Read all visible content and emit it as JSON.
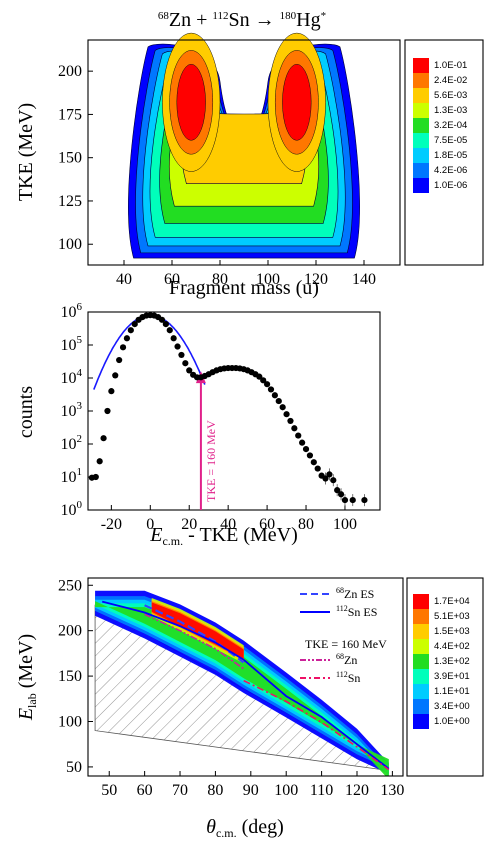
{
  "chart_data": [
    {
      "type": "heatmap",
      "title_parts": {
        "a1": "68",
        "b1": "Zn + ",
        "a2": "112",
        "b2": "Sn → ",
        "a3": "180",
        "b3": "Hg",
        "a4": "*"
      },
      "xlabel": "Fragment mass (u)",
      "ylabel": "TKE (MeV)",
      "xlim": [
        25,
        155
      ],
      "ylim": [
        88,
        218
      ],
      "xticks": [
        "40",
        "60",
        "80",
        "100",
        "120",
        "140"
      ],
      "yticks": [
        "100",
        "125",
        "150",
        "175",
        "200"
      ],
      "scale_labels": [
        "1.0E-01",
        "2.4E-02",
        "5.6E-03",
        "1.3E-03",
        "3.2E-04",
        "7.5E-05",
        "1.8E-05",
        "4.2E-06",
        "1.0E-06"
      ],
      "scale_colors": [
        "#ff0000",
        "#ff7700",
        "#ffcc00",
        "#ccff00",
        "#22dd22",
        "#00ffbb",
        "#00ccff",
        "#0077ff",
        "#0000ff"
      ]
    },
    {
      "type": "scatter",
      "xlabel_main": "E",
      "xlabel_sub": "c.m.",
      "xlabel_rest": " - TKE (MeV)",
      "ylabel": "counts",
      "xlim": [
        -32,
        118
      ],
      "yscale": "log",
      "ylim_exp": [
        0,
        6
      ],
      "xticks": [
        "-20",
        "0",
        "20",
        "40",
        "60",
        "80",
        "100"
      ],
      "ytick_exps": [
        "0",
        "1",
        "2",
        "3",
        "4",
        "5",
        "6"
      ],
      "annotation": "TKE = 160 MeV",
      "annotation_x": 26,
      "points": [
        [
          -30,
          9.5
        ],
        [
          -28,
          10
        ],
        [
          -26,
          30
        ],
        [
          -24,
          150
        ],
        [
          -22,
          1000
        ],
        [
          -20,
          4000
        ],
        [
          -18,
          12000
        ],
        [
          -16,
          35000
        ],
        [
          -14,
          85000
        ],
        [
          -12,
          160000
        ],
        [
          -10,
          280000
        ],
        [
          -8,
          430000
        ],
        [
          -6,
          580000
        ],
        [
          -4,
          700000
        ],
        [
          -2,
          780000
        ],
        [
          0,
          800000
        ],
        [
          2,
          780000
        ],
        [
          4,
          700000
        ],
        [
          6,
          580000
        ],
        [
          8,
          430000
        ],
        [
          10,
          280000
        ],
        [
          12,
          160000
        ],
        [
          14,
          90000
        ],
        [
          16,
          50000
        ],
        [
          18,
          28000
        ],
        [
          20,
          17000
        ],
        [
          22,
          12500
        ],
        [
          24,
          10500
        ],
        [
          26,
          10500
        ],
        [
          28,
          11500
        ],
        [
          30,
          13000
        ],
        [
          32,
          15000
        ],
        [
          34,
          17000
        ],
        [
          36,
          18500
        ],
        [
          38,
          19500
        ],
        [
          40,
          20000
        ],
        [
          42,
          20000
        ],
        [
          44,
          20000
        ],
        [
          46,
          19500
        ],
        [
          48,
          18500
        ],
        [
          50,
          17000
        ],
        [
          52,
          15000
        ],
        [
          54,
          13000
        ],
        [
          56,
          11000
        ],
        [
          58,
          8500
        ],
        [
          60,
          6500
        ],
        [
          62,
          4500
        ],
        [
          64,
          3000
        ],
        [
          66,
          2000
        ],
        [
          68,
          1300
        ],
        [
          70,
          800
        ],
        [
          72,
          500
        ],
        [
          74,
          300
        ],
        [
          76,
          180
        ],
        [
          78,
          110
        ],
        [
          80,
          70
        ],
        [
          82,
          45
        ],
        [
          84,
          28
        ],
        [
          86,
          18
        ],
        [
          88,
          11
        ],
        [
          90,
          9
        ],
        [
          92,
          12
        ],
        [
          94,
          8
        ],
        [
          96,
          4
        ],
        [
          98,
          3
        ],
        [
          100,
          2
        ],
        [
          104,
          2
        ],
        [
          110,
          2
        ]
      ],
      "gauss_fit": {
        "mu": 0,
        "sigma": 9,
        "amp": 800000,
        "range": [
          -29,
          28
        ]
      }
    },
    {
      "type": "heatmap",
      "xlabel_main": "θ",
      "xlabel_sub": "c.m.",
      "xlabel_rest": " (deg)",
      "ylabel_main": "E",
      "ylabel_sub": "lab",
      "ylabel_rest": " (MeV)",
      "xlim": [
        44,
        133
      ],
      "ylim": [
        40,
        258
      ],
      "xticks": [
        "50",
        "60",
        "70",
        "80",
        "90",
        "100",
        "110",
        "120",
        "130"
      ],
      "yticks": [
        "50",
        "100",
        "150",
        "200",
        "250"
      ],
      "legend": [
        {
          "sup": "68",
          "text": "Zn ES",
          "color": "#3344ff",
          "style": "dash"
        },
        {
          "sup": "112",
          "text": "Sn ES",
          "color": "#0000ff",
          "style": "solid"
        },
        {
          "sup": "",
          "text": "TKE = 160 MeV",
          "color": "",
          "style": "none"
        },
        {
          "sup": "68",
          "text": "Zn",
          "color": "#cc2299",
          "style": "dashdotdot"
        },
        {
          "sup": "112",
          "text": "Sn",
          "color": "#ee1166",
          "style": "dashdot"
        }
      ],
      "scale_labels": [
        "1.7E+04",
        "5.1E+03",
        "1.5E+03",
        "4.4E+02",
        "1.3E+02",
        "3.9E+01",
        "1.1E+01",
        "3.4E+00",
        "1.0E+00"
      ],
      "scale_colors": [
        "#ff0000",
        "#ff7700",
        "#ffcc00",
        "#ccff00",
        "#22dd22",
        "#00ffbb",
        "#00ccff",
        "#0077ff",
        "#0000ff"
      ],
      "zn_es": [
        [
          60,
          228
        ],
        [
          70,
          210
        ],
        [
          80,
          188
        ],
        [
          88,
          165
        ]
      ],
      "sn_es": [
        [
          48,
          232
        ],
        [
          60,
          220
        ],
        [
          70,
          205
        ],
        [
          80,
          187
        ],
        [
          88,
          168
        ],
        [
          100,
          128
        ],
        [
          110,
          105
        ],
        [
          120,
          75
        ],
        [
          129,
          48
        ]
      ],
      "zn160": [
        [
          60,
          218
        ],
        [
          70,
          200
        ],
        [
          80,
          180
        ],
        [
          88,
          158
        ]
      ],
      "sn160": [
        [
          88,
          145
        ],
        [
          100,
          122
        ],
        [
          110,
          99
        ],
        [
          120,
          72
        ],
        [
          129,
          47
        ]
      ]
    }
  ]
}
